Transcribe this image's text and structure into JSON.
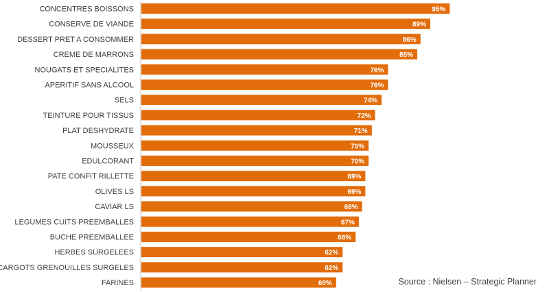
{
  "chart_data": {
    "type": "bar",
    "orientation": "horizontal",
    "categories": [
      "CONCENTRES BOISSONS",
      "CONSERVE DE VIANDE",
      "DESSERT PRET A CONSOMMER",
      "CREME DE MARRONS",
      "NOUGATS ET SPECIALITES",
      "APERITIF SANS ALCOOL",
      "SELS",
      "TEINTURE POUR TISSUS",
      "PLAT DESHYDRATE",
      "MOUSSEUX",
      "EDULCORANT",
      "PATE CONFIT RILLETTE",
      "OLIVES LS",
      "CAVIAR LS",
      "LEGUMES CUITS PREEMBALLES",
      "BUCHE PREEMBALLEE",
      "HERBES SURGELEES",
      "ESCARGOTS GRENOUILLES SURGELES",
      "FARINES"
    ],
    "values": [
      95,
      89,
      86,
      85,
      76,
      76,
      74,
      72,
      71,
      70,
      70,
      69,
      69,
      68,
      67,
      66,
      62,
      62,
      60
    ],
    "value_labels": [
      "95%",
      "89%",
      "86%",
      "85%",
      "76%",
      "76%",
      "74%",
      "72%",
      "71%",
      "70%",
      "70%",
      "69%",
      "69%",
      "68%",
      "67%",
      "66%",
      "62%",
      "62%",
      "60%"
    ],
    "xlim": [
      0,
      100
    ],
    "grid": false,
    "legend": "none",
    "bar_color": "#E36C0A",
    "title": "",
    "xlabel": "",
    "ylabel": ""
  },
  "source": "Source : Nielsen – Strategic Planner"
}
